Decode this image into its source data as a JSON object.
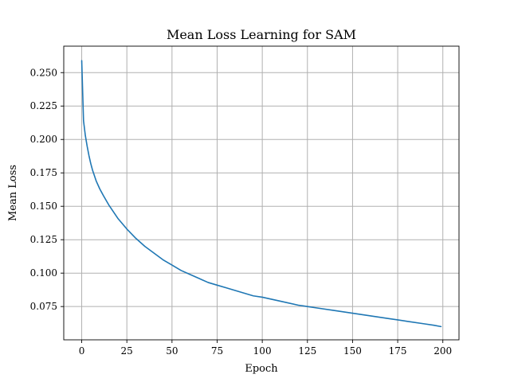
{
  "chart_data": {
    "type": "line",
    "title": "Mean Loss Learning for SAM",
    "xlabel": "Epoch",
    "ylabel": "Mean Loss",
    "xlim": [
      -9.95,
      208.95
    ],
    "ylim": [
      0.0501,
      0.2698
    ],
    "x_ticks": [
      0,
      25,
      50,
      75,
      100,
      125,
      150,
      175,
      200
    ],
    "x_tick_labels": [
      "0",
      "25",
      "50",
      "75",
      "100",
      "125",
      "150",
      "175",
      "200"
    ],
    "y_ticks": [
      0.075,
      0.1,
      0.125,
      0.15,
      0.175,
      0.2,
      0.225,
      0.25
    ],
    "y_tick_labels": [
      "0.075",
      "0.100",
      "0.125",
      "0.150",
      "0.175",
      "0.200",
      "0.225",
      "0.250"
    ],
    "grid": true,
    "line_color": "#1f77b4",
    "series": [
      {
        "x": [
          0,
          1,
          2,
          3,
          4,
          5,
          6,
          8,
          10,
          12,
          15,
          20,
          25,
          30,
          35,
          40,
          45,
          50,
          55,
          60,
          65,
          70,
          75,
          80,
          85,
          90,
          95,
          100,
          110,
          120,
          125,
          130,
          140,
          150,
          160,
          170,
          175,
          180,
          190,
          195,
          199
        ],
        "y": [
          0.259,
          0.214,
          0.203,
          0.195,
          0.188,
          0.182,
          0.177,
          0.169,
          0.163,
          0.158,
          0.151,
          0.141,
          0.133,
          0.126,
          0.12,
          0.115,
          0.11,
          0.106,
          0.102,
          0.099,
          0.096,
          0.093,
          0.091,
          0.089,
          0.087,
          0.085,
          0.083,
          0.082,
          0.079,
          0.076,
          0.075,
          0.074,
          0.072,
          0.07,
          0.068,
          0.066,
          0.065,
          0.064,
          0.062,
          0.061,
          0.06
        ]
      }
    ]
  }
}
